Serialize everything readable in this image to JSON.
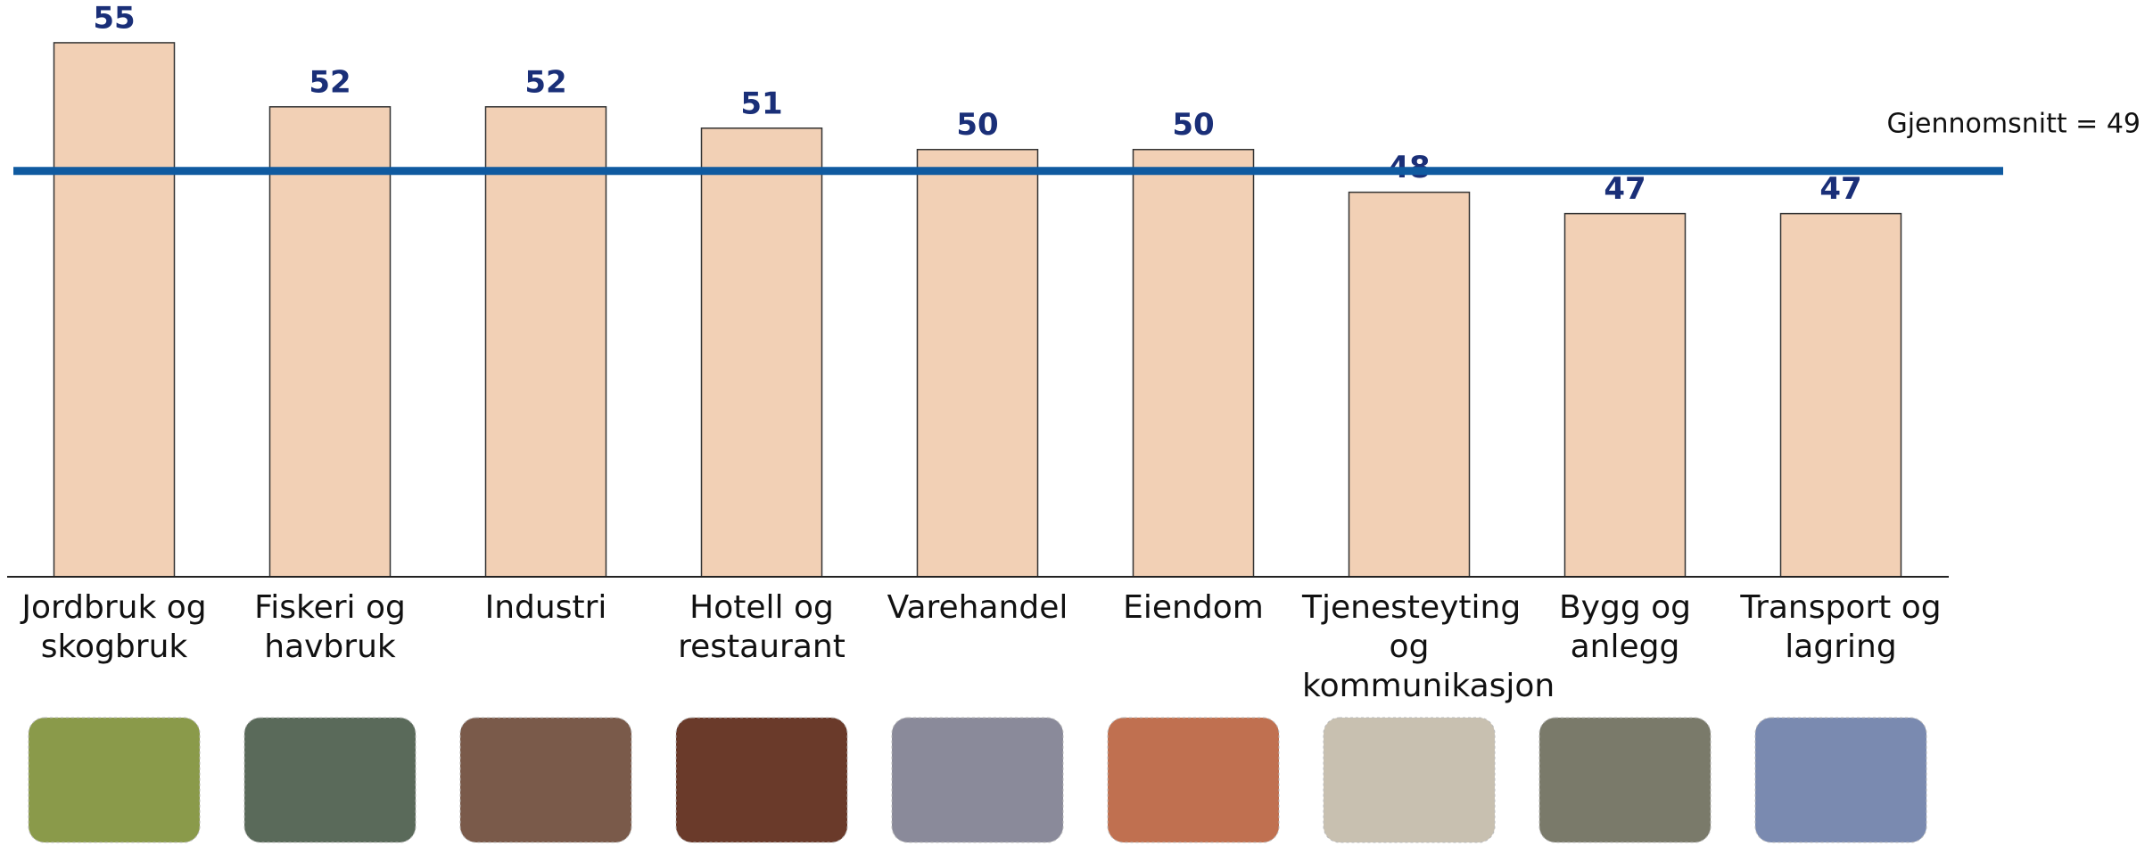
{
  "chart_data": {
    "type": "bar",
    "categories": [
      "Jordbruk og skogbruk",
      "Fiskeri og havbruk",
      "Industri",
      "Hotell og restaurant",
      "Varehandel",
      "Eiendom",
      "Tjenesteyting og kommunikasjon",
      "Bygg og anlegg",
      "Transport og lagring"
    ],
    "values": [
      55,
      52,
      52,
      51,
      50,
      50,
      48,
      47,
      47
    ],
    "color": "#f2d0b5",
    "ylim": [
      30,
      57
    ],
    "average": 49,
    "average_label": "Gjennomsnitt = 49",
    "average_color": "#0f5aa0"
  }
}
